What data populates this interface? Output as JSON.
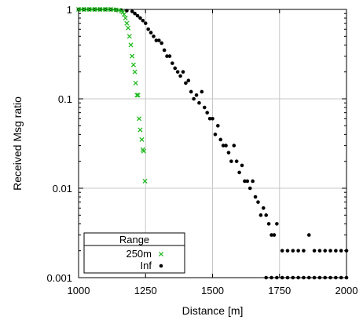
{
  "chart_data": {
    "type": "scatter",
    "xlabel": "Distance [m]",
    "ylabel": "Received Msg ratio",
    "xlim": [
      1000,
      2000
    ],
    "ylim": [
      0.001,
      1
    ],
    "yscale": "log",
    "x_ticks": [
      1000,
      1250,
      1500,
      1750,
      2000
    ],
    "x_tick_labels": [
      "1000",
      "1250",
      "1500",
      "1750",
      "2000"
    ],
    "y_ticks": [
      1,
      0.1,
      0.01,
      0.001
    ],
    "y_tick_labels": [
      "1",
      "0.1",
      "0.01",
      "0.001"
    ],
    "grid": true,
    "legend": {
      "title": "Range",
      "placement": "bottom-left"
    },
    "series": [
      {
        "name": "250m",
        "marker": "cross",
        "color": "#22bb22",
        "points": [
          [
            1000,
            1
          ],
          [
            1010,
            1
          ],
          [
            1020,
            1
          ],
          [
            1030,
            1
          ],
          [
            1040,
            1
          ],
          [
            1050,
            1
          ],
          [
            1060,
            1
          ],
          [
            1070,
            1
          ],
          [
            1080,
            1
          ],
          [
            1090,
            1
          ],
          [
            1100,
            1
          ],
          [
            1110,
            1
          ],
          [
            1120,
            1
          ],
          [
            1130,
            0.995
          ],
          [
            1140,
            0.99
          ],
          [
            1150,
            0.98
          ],
          [
            1160,
            0.96
          ],
          [
            1165,
            0.93
          ],
          [
            1170,
            0.88
          ],
          [
            1175,
            0.8
          ],
          [
            1180,
            0.7
          ],
          [
            1185,
            0.62
          ],
          [
            1190,
            0.5
          ],
          [
            1195,
            0.4
          ],
          [
            1200,
            0.3
          ],
          [
            1205,
            0.24
          ],
          [
            1210,
            0.2
          ],
          [
            1213,
            0.15
          ],
          [
            1218,
            0.11
          ],
          [
            1222,
            0.11
          ],
          [
            1226,
            0.06
          ],
          [
            1230,
            0.045
          ],
          [
            1236,
            0.035
          ],
          [
            1240,
            0.027
          ],
          [
            1243,
            0.026
          ],
          [
            1248,
            0.012
          ]
        ]
      },
      {
        "name": "Inf",
        "marker": "dot",
        "color": "#000000",
        "points": [
          [
            1000,
            1
          ],
          [
            1020,
            1
          ],
          [
            1040,
            1
          ],
          [
            1060,
            1
          ],
          [
            1080,
            1
          ],
          [
            1100,
            1
          ],
          [
            1120,
            1
          ],
          [
            1140,
            0.99
          ],
          [
            1160,
            0.98
          ],
          [
            1180,
            0.97
          ],
          [
            1200,
            0.95
          ],
          [
            1210,
            0.9
          ],
          [
            1220,
            0.85
          ],
          [
            1230,
            0.8
          ],
          [
            1240,
            0.75
          ],
          [
            1250,
            0.7
          ],
          [
            1260,
            0.6
          ],
          [
            1270,
            0.55
          ],
          [
            1280,
            0.5
          ],
          [
            1290,
            0.45
          ],
          [
            1300,
            0.45
          ],
          [
            1310,
            0.42
          ],
          [
            1320,
            0.35
          ],
          [
            1330,
            0.3
          ],
          [
            1340,
            0.3
          ],
          [
            1350,
            0.25
          ],
          [
            1360,
            0.22
          ],
          [
            1370,
            0.2
          ],
          [
            1380,
            0.18
          ],
          [
            1390,
            0.2
          ],
          [
            1400,
            0.15
          ],
          [
            1410,
            0.16
          ],
          [
            1420,
            0.12
          ],
          [
            1430,
            0.1
          ],
          [
            1440,
            0.11
          ],
          [
            1450,
            0.09
          ],
          [
            1460,
            0.12
          ],
          [
            1470,
            0.08
          ],
          [
            1480,
            0.07
          ],
          [
            1490,
            0.06
          ],
          [
            1500,
            0.06
          ],
          [
            1510,
            0.04
          ],
          [
            1520,
            0.05
          ],
          [
            1530,
            0.035
          ],
          [
            1540,
            0.03
          ],
          [
            1550,
            0.03
          ],
          [
            1560,
            0.025
          ],
          [
            1570,
            0.02
          ],
          [
            1580,
            0.03
          ],
          [
            1590,
            0.02
          ],
          [
            1600,
            0.015
          ],
          [
            1610,
            0.018
          ],
          [
            1620,
            0.012
          ],
          [
            1630,
            0.012
          ],
          [
            1640,
            0.01
          ],
          [
            1650,
            0.012
          ],
          [
            1660,
            0.008
          ],
          [
            1670,
            0.007
          ],
          [
            1680,
            0.005
          ],
          [
            1690,
            0.006
          ],
          [
            1700,
            0.005
          ],
          [
            1710,
            0.004
          ],
          [
            1720,
            0.003
          ],
          [
            1730,
            0.003
          ],
          [
            1740,
            0.004
          ],
          [
            1760,
            0.002
          ],
          [
            1780,
            0.002
          ],
          [
            1800,
            0.002
          ],
          [
            1820,
            0.002
          ],
          [
            1840,
            0.002
          ],
          [
            1860,
            0.003
          ],
          [
            1880,
            0.002
          ],
          [
            1900,
            0.002
          ],
          [
            1920,
            0.002
          ],
          [
            1940,
            0.002
          ],
          [
            1960,
            0.002
          ],
          [
            1980,
            0.002
          ],
          [
            2000,
            0.002
          ],
          [
            1700,
            0.001
          ],
          [
            1720,
            0.001
          ],
          [
            1740,
            0.001
          ],
          [
            1760,
            0.001
          ],
          [
            1780,
            0.001
          ],
          [
            1800,
            0.001
          ],
          [
            1820,
            0.001
          ],
          [
            1840,
            0.001
          ],
          [
            1860,
            0.001
          ],
          [
            1880,
            0.001
          ],
          [
            1900,
            0.001
          ],
          [
            1920,
            0.001
          ],
          [
            1940,
            0.001
          ],
          [
            1960,
            0.001
          ],
          [
            1980,
            0.001
          ],
          [
            2000,
            0.001
          ]
        ]
      }
    ]
  }
}
